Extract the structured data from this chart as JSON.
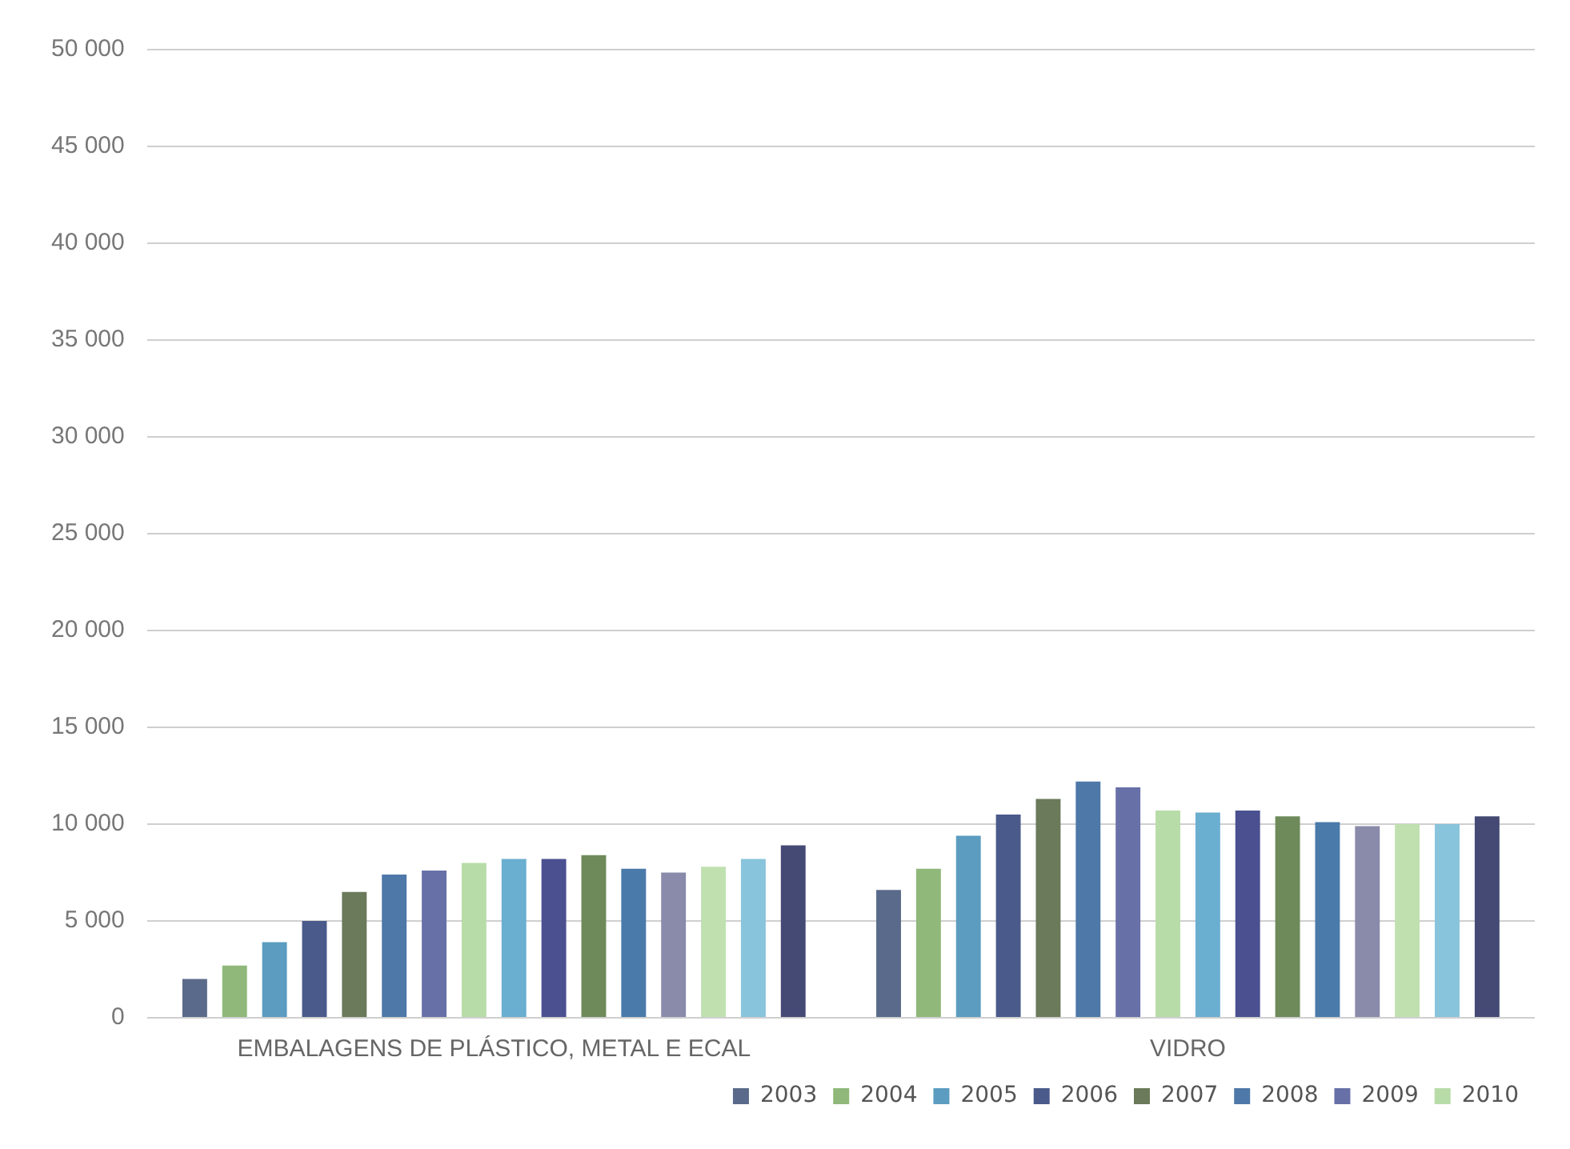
{
  "chart_data": {
    "type": "bar",
    "categories": [
      "EMBALAGENS DE PLÁSTICO, METAL E ECAL",
      "VIDRO"
    ],
    "series": [
      {
        "name": "2003",
        "color": "#5a6a8a",
        "values": [
          2000,
          6600
        ]
      },
      {
        "name": "2004",
        "color": "#8fb87a",
        "values": [
          2700,
          7700
        ]
      },
      {
        "name": "2005",
        "color": "#5b9cc0",
        "values": [
          3900,
          9400
        ]
      },
      {
        "name": "2006",
        "color": "#4a5a8a",
        "values": [
          5000,
          10500
        ]
      },
      {
        "name": "2007",
        "color": "#6a7a5a",
        "values": [
          6500,
          11300
        ]
      },
      {
        "name": "2008",
        "color": "#4e78a8",
        "values": [
          7400,
          12200
        ]
      },
      {
        "name": "2009",
        "color": "#6870a8",
        "values": [
          7600,
          11900
        ]
      },
      {
        "name": "2010",
        "color": "#b8dca8",
        "values": [
          8000,
          10700
        ]
      },
      {
        "color": "#6aaed0",
        "values": [
          8200,
          10600
        ]
      },
      {
        "color": "#4a5090",
        "values": [
          8200,
          10700
        ]
      },
      {
        "color": "#6e8a5a",
        "values": [
          8400,
          10400
        ]
      },
      {
        "color": "#4a7aaa",
        "values": [
          7700,
          10100
        ]
      },
      {
        "color": "#8a8aaa",
        "values": [
          7500,
          9900
        ]
      },
      {
        "color": "#c0e0b0",
        "values": [
          7800,
          10000
        ]
      },
      {
        "color": "#88c4dc",
        "values": [
          8200,
          10000
        ]
      },
      {
        "color": "#454a75",
        "values": [
          8900,
          10400
        ]
      }
    ],
    "ylim": [
      0,
      50000
    ],
    "yticks": [
      {
        "value": 0,
        "label": "0"
      },
      {
        "value": 5000,
        "label": "5 000"
      },
      {
        "value": 10000,
        "label": "10 000"
      },
      {
        "value": 15000,
        "label": "15 000"
      },
      {
        "value": 20000,
        "label": "20 000"
      },
      {
        "value": 25000,
        "label": "25 000"
      },
      {
        "value": 30000,
        "label": "30 000"
      },
      {
        "value": 35000,
        "label": "35 000"
      },
      {
        "value": 40000,
        "label": "40 000"
      },
      {
        "value": 45000,
        "label": "45 000"
      },
      {
        "value": 50000,
        "label": "50 000"
      }
    ],
    "grid": "y",
    "legend": "bottom"
  }
}
